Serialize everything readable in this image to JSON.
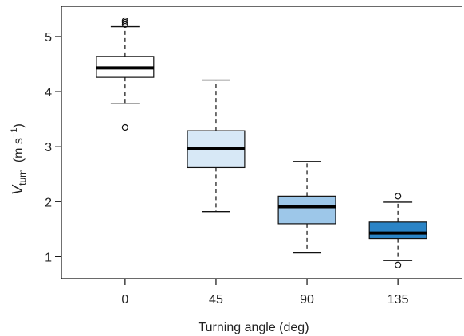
{
  "chart_data": {
    "type": "boxplot",
    "title": "",
    "xlabel": "Turning angle (deg)",
    "ylabel": {
      "symbol": "V",
      "subscript": "turn",
      "unit_prefix": "(m s",
      "unit_exponent": "−1",
      "unit_suffix": ")"
    },
    "ylim": [
      0.6,
      5.55
    ],
    "y_ticks": [
      1,
      2,
      3,
      4,
      5
    ],
    "y_tick_labels": [
      "1",
      "2",
      "3",
      "4",
      "5"
    ],
    "grid": false,
    "categories": [
      "0",
      "45",
      "90",
      "135"
    ],
    "boxes": [
      {
        "category": "0",
        "whisker_low": 3.78,
        "q1": 4.26,
        "median": 4.43,
        "q3": 4.64,
        "whisker_high": 5.18,
        "outliers": [
          3.35,
          5.22,
          5.26,
          5.29
        ],
        "color": "#ffffff"
      },
      {
        "category": "45",
        "whisker_low": 1.82,
        "q1": 2.62,
        "median": 2.96,
        "q3": 3.29,
        "whisker_high": 4.21,
        "outliers": [],
        "color": "#d7e8f6"
      },
      {
        "category": "90",
        "whisker_low": 1.07,
        "q1": 1.6,
        "median": 1.91,
        "q3": 2.1,
        "whisker_high": 2.73,
        "outliers": [],
        "color": "#9dc7e9"
      },
      {
        "category": "135",
        "whisker_low": 0.93,
        "q1": 1.33,
        "median": 1.43,
        "q3": 1.63,
        "whisker_high": 1.99,
        "outliers": [
          0.85,
          2.1
        ],
        "color": "#2b84c6"
      }
    ]
  }
}
